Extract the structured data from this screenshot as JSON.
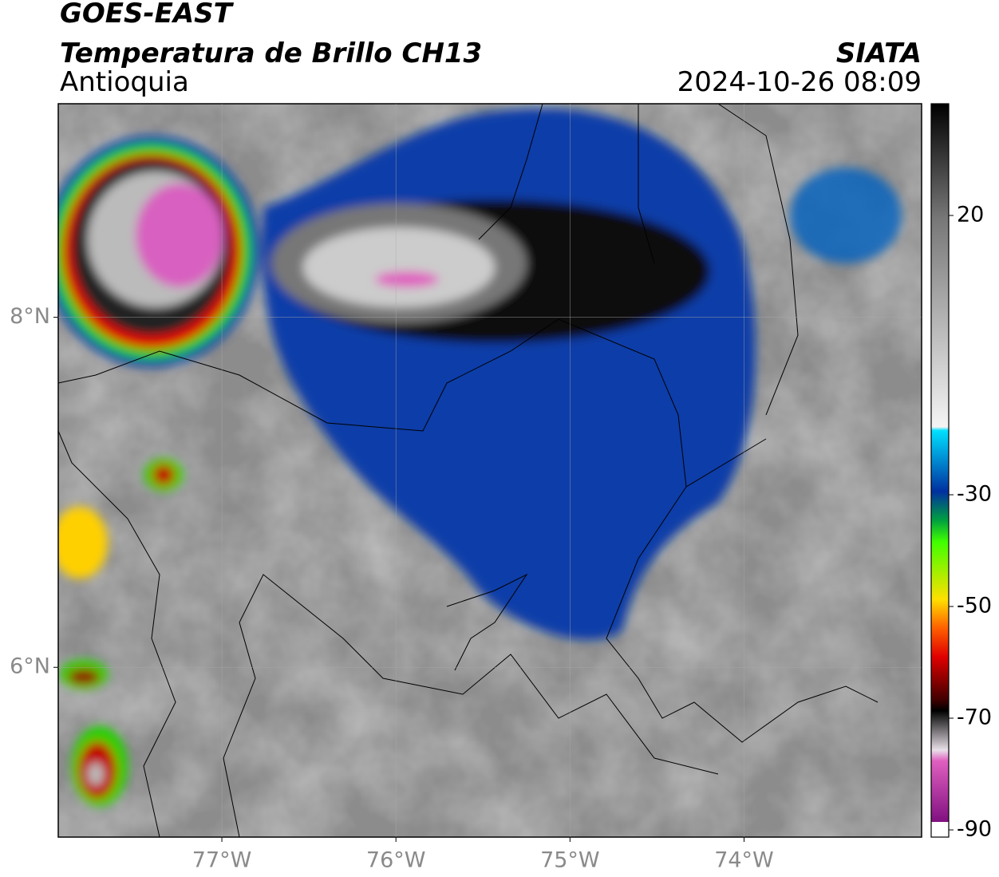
{
  "header": {
    "satellite": "GOES-EAST",
    "product": "Temperatura de Brillo CH13",
    "region": "Antioquia",
    "source": "SIATA",
    "datetime": "2024-10-26 08:09"
  },
  "map": {
    "lonlim": [
      -77.94,
      -72.98
    ],
    "latlim": [
      5.03,
      9.22
    ],
    "lon_ticks": [
      {
        "value": -77,
        "label": "77°W"
      },
      {
        "value": -76,
        "label": "76°W"
      },
      {
        "value": -75,
        "label": "75°W"
      },
      {
        "value": -74,
        "label": "74°W"
      }
    ],
    "lat_ticks": [
      {
        "value": 8,
        "label": "8°N"
      },
      {
        "value": 6,
        "label": "6°N"
      }
    ]
  },
  "colorbar": {
    "lim": [
      -90,
      40
    ],
    "ticks": [
      20,
      -30,
      -50,
      -70,
      -90
    ]
  }
}
